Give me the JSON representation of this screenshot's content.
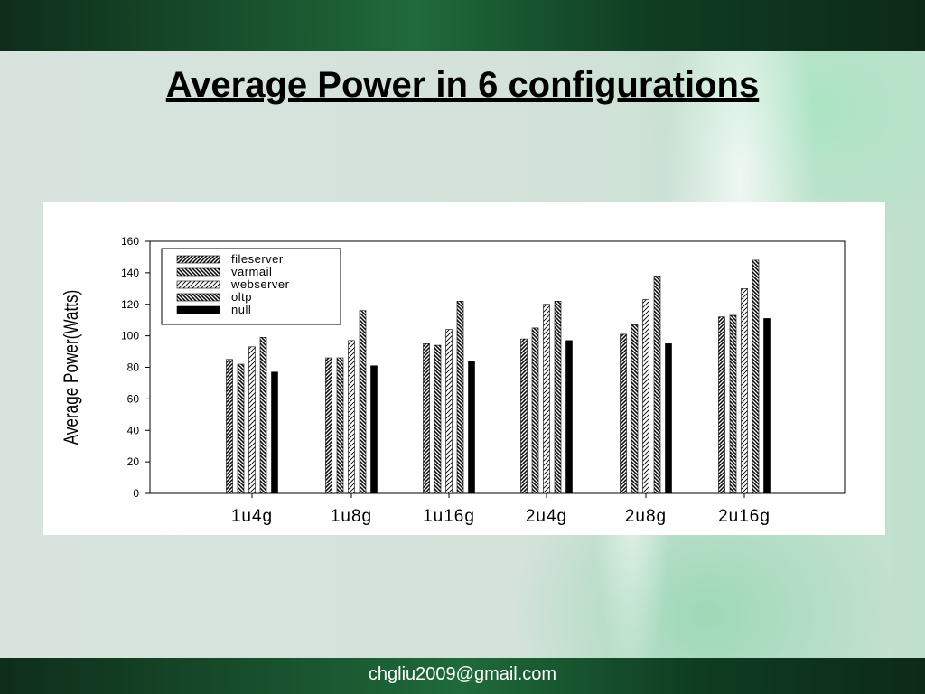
{
  "slide": {
    "title": "Average Power in 6 configurations",
    "footer": "chgliu2009@gmail.com"
  },
  "colors": {
    "band": "#1f6a3a",
    "background": "#d4e2da",
    "bar_outline": "#000000",
    "null_fill": "#000000"
  },
  "chart_data": {
    "type": "bar",
    "categories": [
      "1u4g",
      "1u8g",
      "1u16g",
      "2u4g",
      "2u8g",
      "2u16g"
    ],
    "series": [
      {
        "name": "fileserver",
        "pattern": "dense-diagonal",
        "values": [
          85,
          86,
          95,
          98,
          101,
          112
        ]
      },
      {
        "name": "varmail",
        "pattern": "dense-backslash",
        "values": [
          82,
          86,
          94,
          105,
          107,
          113
        ]
      },
      {
        "name": "webserver",
        "pattern": "sparse-diagonal",
        "values": [
          93,
          97,
          104,
          120,
          123,
          130
        ]
      },
      {
        "name": "oltp",
        "pattern": "dense-backslash",
        "values": [
          99,
          116,
          122,
          122,
          138,
          148
        ]
      },
      {
        "name": "null",
        "pattern": "solid",
        "values": [
          77,
          81,
          84,
          97,
          95,
          111
        ]
      }
    ],
    "ylabel": "Average Power(Watts)",
    "xlabel": "",
    "ylim": [
      0,
      160
    ],
    "yticks": [
      0,
      20,
      40,
      60,
      80,
      100,
      120,
      140,
      160
    ],
    "legend_position": "top-left",
    "grid": false
  }
}
